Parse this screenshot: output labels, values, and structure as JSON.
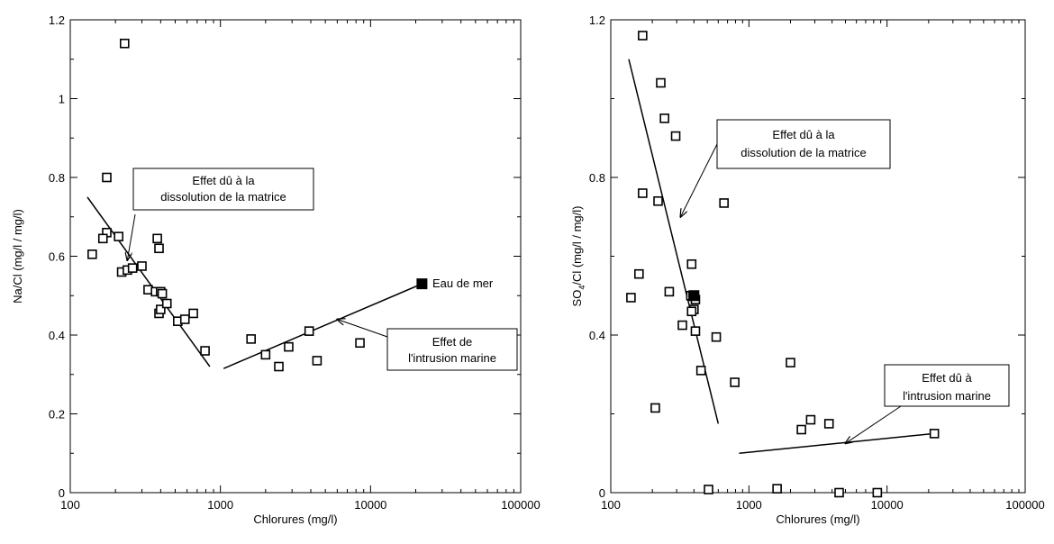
{
  "chart_data": [
    {
      "type": "scatter",
      "title": "",
      "xlabel": "Chlorures (mg/l)",
      "ylabel": "Na/Cl (mg/l / mg/l)",
      "x_scale": "log",
      "xlim": [
        100,
        100000
      ],
      "ylim": [
        0,
        1.2
      ],
      "x_ticks": [
        "100",
        "1000",
        "10000",
        "100000"
      ],
      "y_ticks": [
        "0",
        "0.2",
        "0.4",
        "0.6",
        "0.8",
        "1",
        "1.2"
      ],
      "grid": false,
      "legend": "none",
      "series": [
        {
          "marker": "open-square",
          "points": [
            [
              230,
              1.14
            ],
            [
              175,
              0.8
            ],
            [
              175,
              0.66
            ],
            [
              165,
              0.645
            ],
            [
              210,
              0.65
            ],
            [
              140,
              0.605
            ],
            [
              220,
              0.56
            ],
            [
              240,
              0.565
            ],
            [
              260,
              0.57
            ],
            [
              300,
              0.575
            ],
            [
              380,
              0.645
            ],
            [
              390,
              0.62
            ],
            [
              330,
              0.515
            ],
            [
              370,
              0.51
            ],
            [
              400,
              0.51
            ],
            [
              410,
              0.505
            ],
            [
              390,
              0.455
            ],
            [
              400,
              0.465
            ],
            [
              440,
              0.48
            ],
            [
              520,
              0.435
            ],
            [
              580,
              0.44
            ],
            [
              660,
              0.455
            ],
            [
              790,
              0.36
            ],
            [
              1600,
              0.39
            ],
            [
              2000,
              0.35
            ],
            [
              2450,
              0.32
            ],
            [
              2850,
              0.37
            ],
            [
              3900,
              0.41
            ],
            [
              4400,
              0.335
            ],
            [
              8500,
              0.38
            ]
          ]
        },
        {
          "name": "Eau de mer",
          "marker": "filled-square",
          "points": [
            [
              22000,
              0.53
            ]
          ]
        }
      ],
      "trend_lines": [
        {
          "from": [
            130,
            0.75
          ],
          "to": [
            850,
            0.32
          ]
        },
        {
          "from": [
            1050,
            0.315
          ],
          "to": [
            22000,
            0.53
          ]
        }
      ],
      "annotations": [
        {
          "lines": [
            "Effet dû à la",
            "dissolution de la matrice"
          ],
          "arrow_to": [
            240,
            0.59
          ]
        },
        {
          "lines": [
            "Effet de",
            "l'intrusion marine"
          ],
          "arrow_to": [
            6000,
            0.44
          ]
        },
        {
          "lines": [
            "Eau de mer"
          ],
          "arrow_to": null
        }
      ]
    },
    {
      "type": "scatter",
      "title": "",
      "xlabel": "Chlorures (mg/l)",
      "ylabel_main": "SO",
      "ylabel_sub": "4",
      "ylabel_rest": "/Cl (mg/l / mg/l)",
      "x_scale": "log",
      "xlim": [
        100,
        100000
      ],
      "ylim": [
        0,
        1.2
      ],
      "x_ticks": [
        "100",
        "1000",
        "10000",
        "100000"
      ],
      "y_ticks": [
        "0",
        "0.4",
        "0.8",
        "1.2"
      ],
      "grid": false,
      "legend": "none",
      "series": [
        {
          "marker": "open-square",
          "points": [
            [
              170,
              1.16
            ],
            [
              230,
              1.04
            ],
            [
              245,
              0.95
            ],
            [
              295,
              0.905
            ],
            [
              170,
              0.76
            ],
            [
              220,
              0.74
            ],
            [
              660,
              0.735
            ],
            [
              385,
              0.58
            ],
            [
              160,
              0.555
            ],
            [
              140,
              0.495
            ],
            [
              265,
              0.51
            ],
            [
              380,
              0.5
            ],
            [
              395,
              0.5
            ],
            [
              410,
              0.49
            ],
            [
              400,
              0.465
            ],
            [
              385,
              0.46
            ],
            [
              330,
              0.425
            ],
            [
              410,
              0.41
            ],
            [
              580,
              0.395
            ],
            [
              2000,
              0.33
            ],
            [
              450,
              0.31
            ],
            [
              790,
              0.28
            ],
            [
              210,
              0.215
            ],
            [
              2800,
              0.185
            ],
            [
              3800,
              0.175
            ],
            [
              2400,
              0.16
            ],
            [
              22000,
              0.15
            ],
            [
              510,
              0.008
            ],
            [
              1600,
              0.01
            ],
            [
              4500,
              0.0
            ],
            [
              8500,
              0.0
            ]
          ]
        },
        {
          "marker": "filled-square",
          "points": [
            [
              400,
              0.5
            ]
          ]
        }
      ],
      "trend_lines": [
        {
          "from": [
            135,
            1.1
          ],
          "to": [
            600,
            0.175
          ]
        },
        {
          "from": [
            850,
            0.1
          ],
          "to": [
            22000,
            0.15
          ]
        }
      ],
      "annotations": [
        {
          "lines": [
            "Effet dû à la",
            "dissolution de la matrice"
          ],
          "arrow_to": [
            320,
            0.7
          ]
        },
        {
          "lines": [
            "Effet dû à",
            "l'intrusion marine"
          ],
          "arrow_to": [
            5000,
            0.125
          ]
        }
      ]
    }
  ]
}
